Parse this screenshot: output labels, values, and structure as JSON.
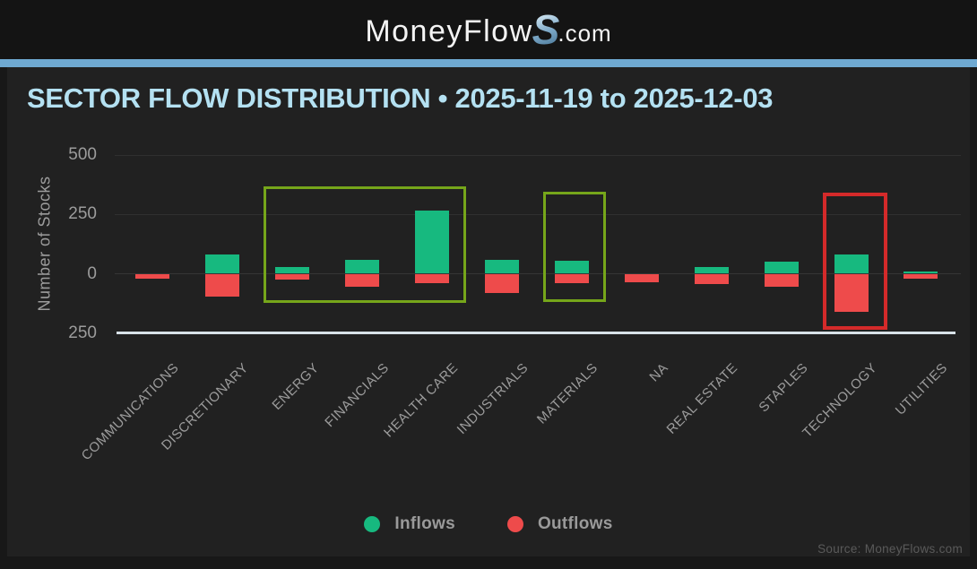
{
  "header": {
    "logo_prefix": "MoneyFlow",
    "logo_s": "S",
    "logo_suffix": ".com"
  },
  "title": "SECTOR FLOW DISTRIBUTION • 2025-11-19 to 2025-12-03",
  "source": "Source: MoneyFlows.com",
  "legend": [
    {
      "label": "Inflows",
      "color": "#17b97f"
    },
    {
      "label": "Outflows",
      "color": "#ee4b4b"
    }
  ],
  "colors": {
    "background": "#212121",
    "header_bg": "#141414",
    "divider_blue": "#6fa9d1",
    "title_blue": "#b4e1f2",
    "axis_text": "#9c9c9c",
    "inflow_green": "#17b97f",
    "outflow_red": "#ee4b4b",
    "highlight_lime": "#76a61a",
    "highlight_red": "#d42a2a",
    "baseline": "#d8e2e8"
  },
  "chart_data": {
    "type": "bar",
    "variant": "diverging-stacked",
    "title": "SECTOR FLOW DISTRIBUTION • 2025-11-19 to 2025-12-03",
    "xlabel": "",
    "ylabel": "Number of Stocks",
    "ylim": [
      -250,
      550
    ],
    "grid": true,
    "legend_position": "bottom",
    "categories": [
      "COMMUNICATIONS",
      "DISCRETIONARY",
      "ENERGY",
      "FINANCIALS",
      "HEALTH CARE",
      "INDUSTRIALS",
      "MATERIALS",
      "NA",
      "REAL ESTATE",
      "STAPLES",
      "TECHNOLOGY",
      "UTILITIES"
    ],
    "series": [
      {
        "name": "Inflows",
        "color": "#17b97f",
        "values": [
          0,
          80,
          30,
          60,
          265,
          60,
          55,
          0,
          30,
          50,
          80,
          10
        ]
      },
      {
        "name": "Outflows",
        "color": "#ee4b4b",
        "values": [
          -20,
          -95,
          -25,
          -55,
          -40,
          -80,
          -40,
          -35,
          -45,
          -55,
          -160,
          -20
        ]
      }
    ],
    "y_ticks": [
      {
        "label": "500",
        "value": 500,
        "line": "faint"
      },
      {
        "label": "250",
        "value": 250,
        "line": "faint"
      },
      {
        "label": "0",
        "value": 0,
        "line": "zero"
      },
      {
        "label": "250",
        "value": -250,
        "line": "axis"
      }
    ],
    "annotations": [
      {
        "shape": "rect",
        "color": "#76a61a",
        "border_width": 3,
        "from_category": "ENERGY",
        "to_category": "HEALTH CARE",
        "top_value": 370,
        "bottom_value": -100
      },
      {
        "shape": "rect",
        "color": "#76a61a",
        "border_width": 3,
        "from_category": "MATERIALS",
        "to_category": "MATERIALS",
        "top_value": 345,
        "bottom_value": -95
      },
      {
        "shape": "rect",
        "color": "#d42a2a",
        "border_width": 4,
        "from_category": "TECHNOLOGY",
        "to_category": "TECHNOLOGY",
        "top_value": 342,
        "bottom_value": -205
      }
    ]
  }
}
